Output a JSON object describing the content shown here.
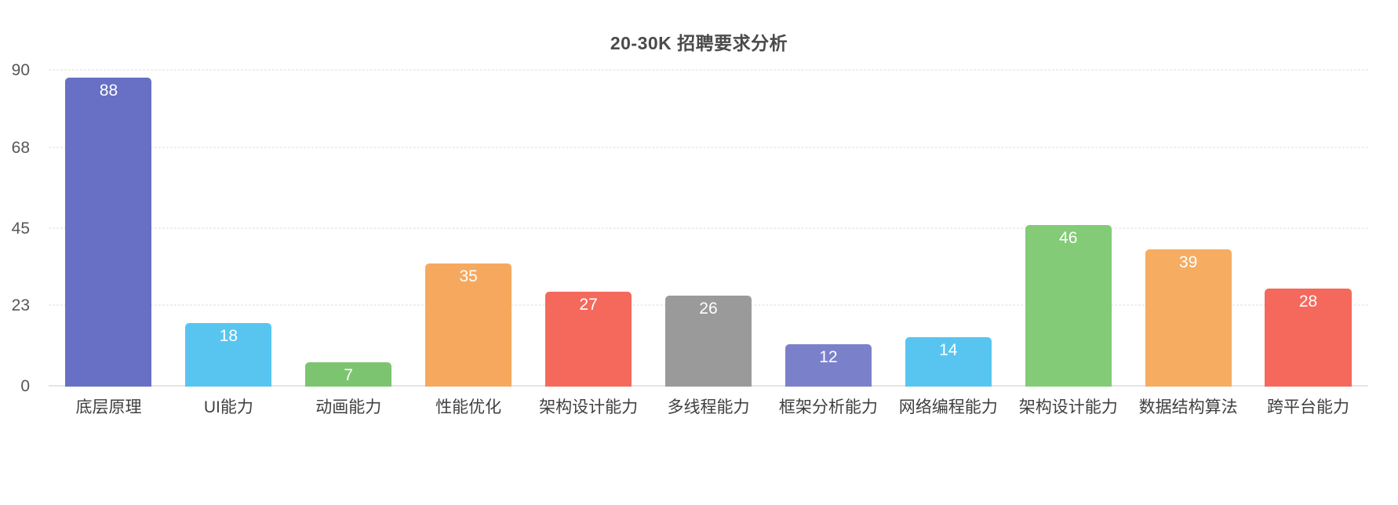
{
  "chart_data": {
    "type": "bar",
    "title": "20-30K 招聘要求分析",
    "categories": [
      "底层原理",
      "UI能力",
      "动画能力",
      "性能优化",
      "架构设计能力",
      "多线程能力",
      "框架分析能力",
      "网络编程能力",
      "架构设计能力",
      "数据结构算法",
      "跨平台能力"
    ],
    "values": [
      88,
      18,
      7,
      35,
      27,
      26,
      12,
      14,
      46,
      39,
      28
    ],
    "bar_colors": [
      "#6770c4",
      "#58c5f1",
      "#7dc470",
      "#f6a95e",
      "#f4695c",
      "#9a9a9a",
      "#7a80ca",
      "#58c5f1",
      "#83cb77",
      "#f6ac61",
      "#f4695c"
    ],
    "yticks": [
      0,
      23,
      45,
      68,
      90
    ],
    "ylim": [
      0,
      90
    ],
    "xlabel": "",
    "ylabel": "",
    "grid": "dashed horizontal gridlines, solid baseline",
    "legend": "none",
    "value_label_color": "#ffffff",
    "title_color": "#4a4a4a",
    "axis_label_color": "#575757",
    "grid_color": "#dcdcdc",
    "axis_line_color": "#c9c9c9",
    "background": "#ffffff"
  }
}
